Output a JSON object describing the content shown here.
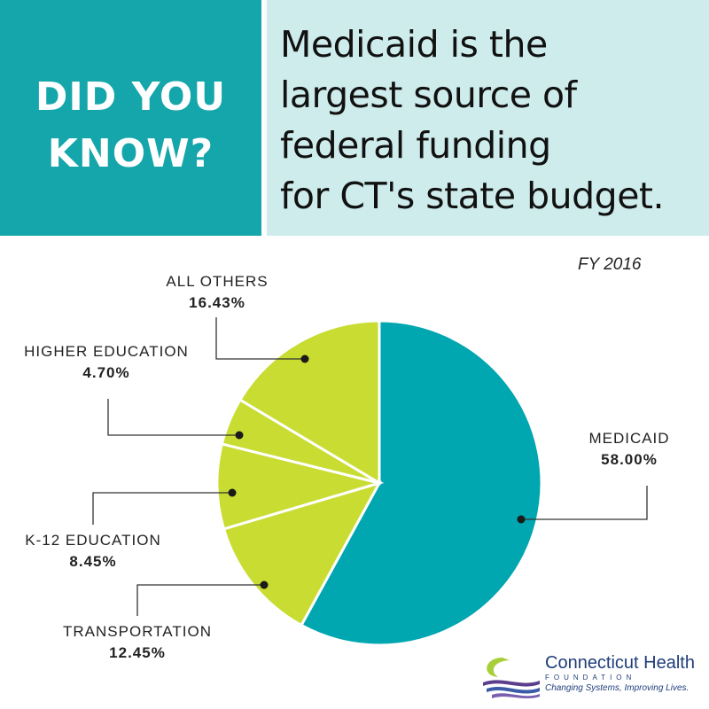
{
  "banner": {
    "kicker_line1": "DID YOU",
    "kicker_line2": "KNOW?",
    "headline": [
      "Medicaid is the",
      "largest source of",
      "federal funding",
      "for CT's state budget."
    ],
    "left_color": "#14a6aa",
    "right_color": "#cdeceb"
  },
  "chart_data": {
    "type": "pie",
    "subtitle": "FY 2016",
    "slices": [
      {
        "label": "MEDICAID",
        "value": 58.0,
        "display": "58.00%",
        "color": "#00a6b0"
      },
      {
        "label": "TRANSPORTATION",
        "value": 12.45,
        "display": "12.45%",
        "color": "#c9dc32"
      },
      {
        "label": "K-12 EDUCATION",
        "value": 8.45,
        "display": "8.45%",
        "color": "#c9dc32"
      },
      {
        "label": "HIGHER EDUCATION",
        "value": 4.7,
        "display": "4.70%",
        "color": "#c9dc32"
      },
      {
        "label": "ALL OTHERS",
        "value": 16.43,
        "display": "16.43%",
        "color": "#c9dc32"
      }
    ],
    "start_angle_deg": 0,
    "direction": "clockwise"
  },
  "logo": {
    "title": "Connecticut Health",
    "subtitle": "FOUNDATION",
    "tagline": "Changing Systems, Improving Lives."
  }
}
